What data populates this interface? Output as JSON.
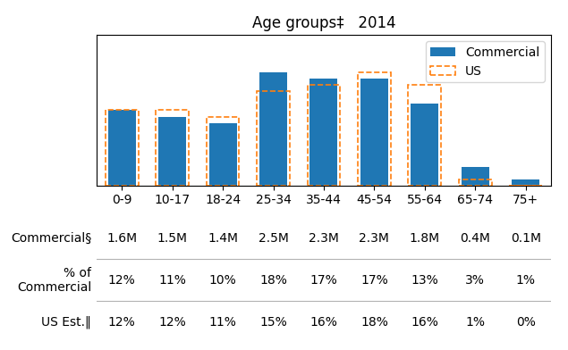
{
  "chart_data": {
    "type": "bar",
    "title": "Age groups‡   2014",
    "categories": [
      "0-9",
      "10-17",
      "18-24",
      "25-34",
      "35-44",
      "45-54",
      "55-64",
      "65-74",
      "75+"
    ],
    "series": [
      {
        "name": "Commercial",
        "values": [
          12,
          11,
          10,
          18,
          17,
          17,
          13,
          3,
          1
        ]
      },
      {
        "name": "US",
        "line_style": "dashed",
        "values": [
          12,
          12,
          11,
          15,
          16,
          18,
          16,
          1,
          0
        ]
      }
    ],
    "ylim": [
      0,
      24
    ],
    "yticks": [],
    "tick_labels": "x",
    "legend": "upper right",
    "table": [
      {
        "label": "Commercial§",
        "cells": [
          "1.6M",
          "1.5M",
          "1.4M",
          "2.5M",
          "2.3M",
          "2.3M",
          "1.8M",
          "0.4M",
          "0.1M"
        ]
      },
      {
        "label": "% of\nCommercial",
        "cells": [
          "12%",
          "11%",
          "10%",
          "18%",
          "17%",
          "17%",
          "13%",
          "3%",
          "1%"
        ]
      },
      {
        "label": "US Est.‖",
        "cells": [
          "12%",
          "12%",
          "11%",
          "15%",
          "16%",
          "18%",
          "16%",
          "1%",
          "0%"
        ]
      }
    ]
  }
}
